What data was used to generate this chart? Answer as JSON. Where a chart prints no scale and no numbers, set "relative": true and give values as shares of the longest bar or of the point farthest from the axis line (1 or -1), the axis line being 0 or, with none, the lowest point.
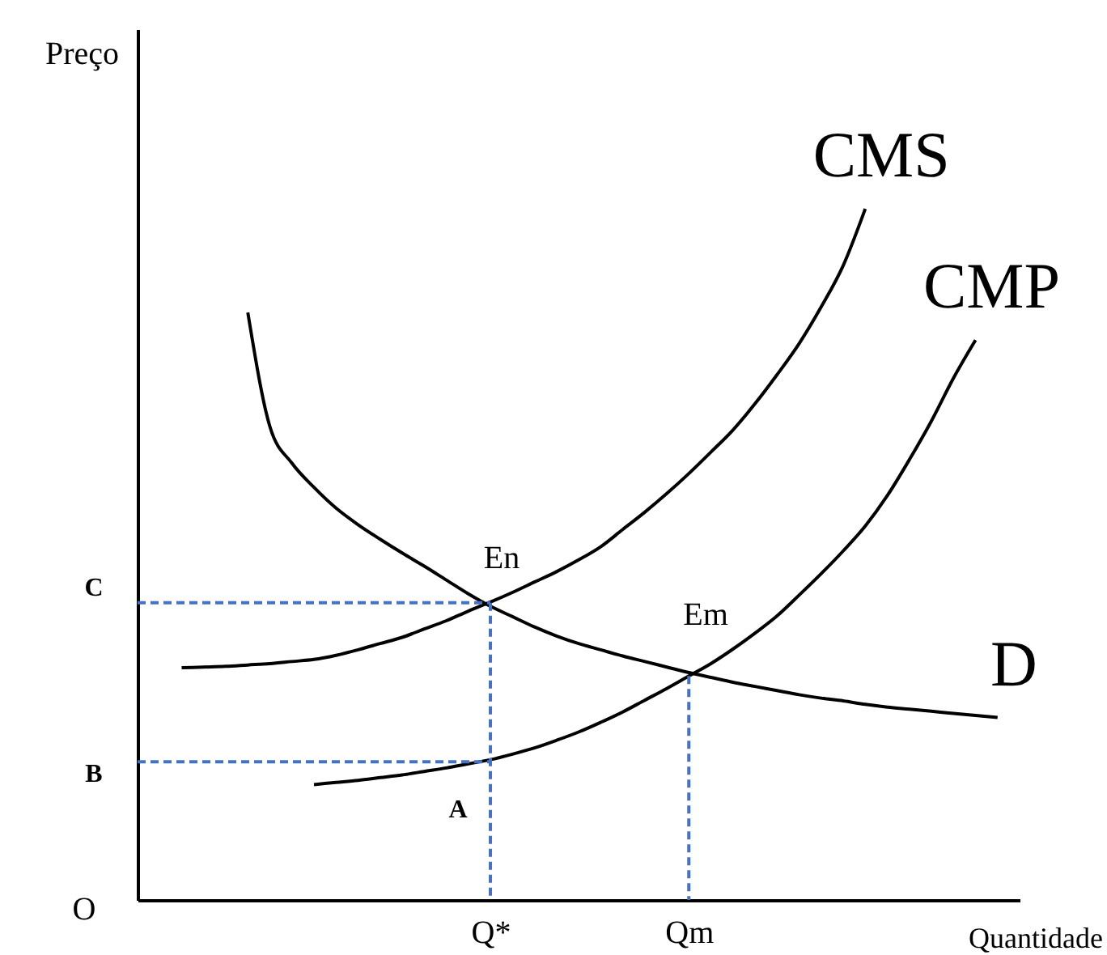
{
  "chart_data": {
    "type": "line",
    "relative": true,
    "xlabel": "Quantidade",
    "ylabel": "Preço",
    "categories": [
      null,
      null,
      null,
      null,
      null,
      null,
      null,
      null,
      null,
      null,
      null,
      null,
      null,
      null,
      null,
      null,
      "Q*",
      null,
      null,
      null,
      null,
      null,
      null,
      null,
      null,
      "Qm",
      null,
      null,
      null,
      null,
      null,
      null,
      null,
      null,
      null,
      null,
      null,
      null,
      null,
      null,
      null
    ],
    "series": [
      {
        "name": "CMS",
        "color": "#000000",
        "values": [
          null,
          null,
          0.336,
          0.337,
          0.338,
          0.34,
          0.342,
          0.345,
          0.348,
          0.354,
          0.362,
          0.371,
          0.38,
          0.392,
          0.404,
          0.418,
          0.431,
          0.445,
          0.46,
          0.475,
          0.492,
          0.511,
          0.536,
          0.561,
          0.588,
          0.617,
          0.648,
          0.68,
          0.718,
          0.76,
          0.805,
          0.858,
          0.918,
          1.0,
          null,
          null,
          null,
          null,
          null,
          null,
          null
        ]
      },
      {
        "name": "CMP",
        "color": "#000000",
        "values": [
          null,
          null,
          null,
          null,
          null,
          null,
          null,
          null,
          0.167,
          0.17,
          0.173,
          0.177,
          0.181,
          0.186,
          0.191,
          0.197,
          0.203,
          0.211,
          0.22,
          0.231,
          0.243,
          0.257,
          0.272,
          0.289,
          0.306,
          0.324,
          0.342,
          0.363,
          0.386,
          0.411,
          0.441,
          0.472,
          0.505,
          0.541,
          0.585,
          0.637,
          0.693,
          0.755,
          0.81,
          null,
          null
        ]
      },
      {
        "name": "D",
        "color": "#000000",
        "values": [
          null,
          null,
          null,
          null,
          null,
          0.85,
          0.685,
          0.632,
          0.597,
          0.567,
          0.543,
          0.522,
          0.502,
          0.483,
          0.463,
          0.443,
          0.425,
          0.41,
          0.395,
          0.382,
          0.371,
          0.362,
          0.353,
          0.345,
          0.337,
          0.329,
          0.322,
          0.315,
          0.309,
          0.303,
          0.297,
          0.292,
          0.288,
          0.283,
          0.279,
          0.276,
          0.273,
          0.27,
          0.267,
          0.264,
          null
        ]
      },
      {
        "color": "#4472c4",
        "line_style": "dashed",
        "values": [
          0.43,
          0.43,
          0.43,
          0.43,
          0.43,
          0.43,
          0.43,
          0.43,
          0.43,
          0.43,
          0.43,
          0.43,
          0.43,
          0.43,
          0.43,
          0.43,
          0.43,
          null,
          null,
          null,
          null,
          null,
          null,
          null,
          null,
          null,
          null,
          null,
          null,
          null,
          null,
          null,
          null,
          null,
          null,
          null,
          null,
          null,
          null,
          null,
          null
        ]
      },
      {
        "color": "#4472c4",
        "line_style": "dashed",
        "values": [
          0.2,
          0.2,
          0.2,
          0.2,
          0.2,
          0.2,
          0.2,
          0.2,
          0.2,
          0.2,
          0.2,
          0.2,
          0.2,
          0.2,
          0.2,
          0.2,
          0.2,
          null,
          null,
          null,
          null,
          null,
          null,
          null,
          null,
          null,
          null,
          null,
          null,
          null,
          null,
          null,
          null,
          null,
          null,
          null,
          null,
          null,
          null,
          null,
          null
        ]
      },
      {
        "color": "#4472c4",
        "line_style": "dashed",
        "x": [
          "Q*",
          "Q*"
        ],
        "values": [
          0.43,
          0
        ]
      },
      {
        "color": "#4472c4",
        "line_style": "dashed",
        "x": [
          "Qm",
          "Qm"
        ],
        "values": [
          0.324,
          0
        ]
      }
    ],
    "annotations": [
      "En",
      "Em",
      "A",
      "C",
      "B",
      "O"
    ]
  }
}
